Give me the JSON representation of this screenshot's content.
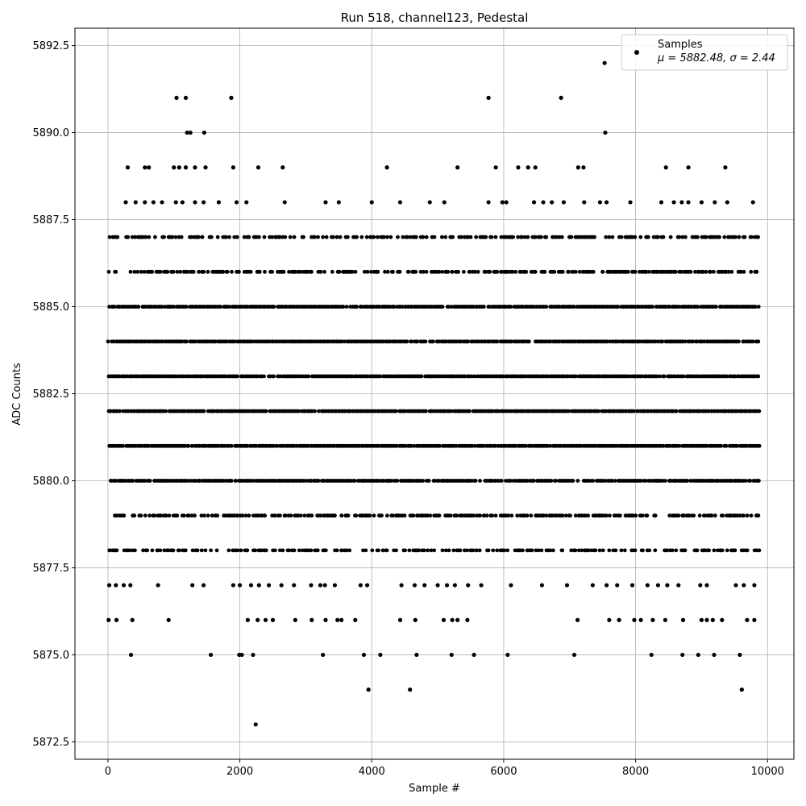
{
  "chart_data": {
    "type": "scatter",
    "title": "Run 518, channel123, Pedestal",
    "xlabel": "Sample #",
    "ylabel": "ADC Counts",
    "xlim": [
      -500,
      10400
    ],
    "ylim": [
      5872.0,
      5893.0
    ],
    "xticks": [
      0,
      2000,
      4000,
      6000,
      8000,
      10000
    ],
    "xtick_labels": [
      "0",
      "2000",
      "4000",
      "6000",
      "8000",
      "10000"
    ],
    "yticks": [
      5872.5,
      5875.0,
      5877.5,
      5880.0,
      5882.5,
      5885.0,
      5887.5,
      5890.0,
      5892.5
    ],
    "ytick_labels": [
      "5872.5",
      "5875.0",
      "5877.5",
      "5880.0",
      "5882.5",
      "5885.0",
      "5887.5",
      "5890.0",
      "5892.5"
    ],
    "grid": true,
    "legend": {
      "placement": "top-right",
      "entries": [
        {
          "label": "Samples",
          "sublabel": "μ = 5882.48, σ = 2.44"
        }
      ]
    },
    "marker_color": "#000000",
    "series": [
      {
        "name": "Samples",
        "levels": [
          {
            "y": 5885,
            "density": 0.9
          },
          {
            "y": 5884,
            "density": 0.9
          },
          {
            "y": 5883,
            "density": 0.95
          },
          {
            "y": 5882,
            "density": 0.95
          },
          {
            "y": 5881,
            "density": 0.95
          },
          {
            "y": 5880,
            "density": 0.85
          },
          {
            "y": 5886,
            "density": 0.6
          },
          {
            "y": 5879,
            "density": 0.6
          },
          {
            "y": 5887,
            "density": 0.5
          },
          {
            "y": 5878,
            "density": 0.45
          }
        ],
        "points": [
          [
            300,
            5889
          ],
          [
            560,
            5889
          ],
          [
            620,
            5889
          ],
          [
            1000,
            5889
          ],
          [
            1080,
            5889
          ],
          [
            1180,
            5889
          ],
          [
            1320,
            5889
          ],
          [
            1480,
            5889
          ],
          [
            1900,
            5889
          ],
          [
            2280,
            5889
          ],
          [
            2650,
            5889
          ],
          [
            4230,
            5889
          ],
          [
            5300,
            5889
          ],
          [
            5880,
            5889
          ],
          [
            6220,
            5889
          ],
          [
            6370,
            5889
          ],
          [
            6480,
            5889
          ],
          [
            7130,
            5889
          ],
          [
            7210,
            5889
          ],
          [
            8460,
            5889
          ],
          [
            8800,
            5889
          ],
          [
            9360,
            5889
          ],
          [
            270,
            5888
          ],
          [
            420,
            5888
          ],
          [
            560,
            5888
          ],
          [
            690,
            5888
          ],
          [
            820,
            5888
          ],
          [
            1030,
            5888
          ],
          [
            1130,
            5888
          ],
          [
            1320,
            5888
          ],
          [
            1450,
            5888
          ],
          [
            1680,
            5888
          ],
          [
            1950,
            5888
          ],
          [
            2100,
            5888
          ],
          [
            2680,
            5888
          ],
          [
            3300,
            5888
          ],
          [
            3500,
            5888
          ],
          [
            4000,
            5888
          ],
          [
            4430,
            5888
          ],
          [
            4880,
            5888
          ],
          [
            5100,
            5888
          ],
          [
            5770,
            5888
          ],
          [
            5980,
            5888
          ],
          [
            6040,
            5888
          ],
          [
            6460,
            5888
          ],
          [
            6600,
            5888
          ],
          [
            6730,
            5888
          ],
          [
            6910,
            5888
          ],
          [
            7220,
            5888
          ],
          [
            7460,
            5888
          ],
          [
            7560,
            5888
          ],
          [
            7920,
            5888
          ],
          [
            8390,
            5888
          ],
          [
            8580,
            5888
          ],
          [
            8700,
            5888
          ],
          [
            8800,
            5888
          ],
          [
            9000,
            5888
          ],
          [
            9200,
            5888
          ],
          [
            9390,
            5888
          ],
          [
            9780,
            5888
          ],
          [
            1040,
            5891
          ],
          [
            1180,
            5891
          ],
          [
            1870,
            5891
          ],
          [
            5770,
            5891
          ],
          [
            6870,
            5891
          ],
          [
            1200,
            5890
          ],
          [
            1250,
            5890
          ],
          [
            1460,
            5890
          ],
          [
            7540,
            5890
          ],
          [
            7530,
            5892
          ],
          [
            20,
            5877
          ],
          [
            120,
            5877
          ],
          [
            240,
            5877
          ],
          [
            340,
            5877
          ],
          [
            760,
            5877
          ],
          [
            1280,
            5877
          ],
          [
            1450,
            5877
          ],
          [
            1900,
            5877
          ],
          [
            2000,
            5877
          ],
          [
            2170,
            5877
          ],
          [
            2290,
            5877
          ],
          [
            2440,
            5877
          ],
          [
            2630,
            5877
          ],
          [
            2820,
            5877
          ],
          [
            3080,
            5877
          ],
          [
            3220,
            5877
          ],
          [
            3290,
            5877
          ],
          [
            3440,
            5877
          ],
          [
            3830,
            5877
          ],
          [
            3930,
            5877
          ],
          [
            4450,
            5877
          ],
          [
            4650,
            5877
          ],
          [
            4800,
            5877
          ],
          [
            5000,
            5877
          ],
          [
            5140,
            5877
          ],
          [
            5260,
            5877
          ],
          [
            5460,
            5877
          ],
          [
            5660,
            5877
          ],
          [
            6110,
            5877
          ],
          [
            6580,
            5877
          ],
          [
            6960,
            5877
          ],
          [
            7350,
            5877
          ],
          [
            7560,
            5877
          ],
          [
            7720,
            5877
          ],
          [
            7950,
            5877
          ],
          [
            8180,
            5877
          ],
          [
            8340,
            5877
          ],
          [
            8480,
            5877
          ],
          [
            8650,
            5877
          ],
          [
            8980,
            5877
          ],
          [
            9080,
            5877
          ],
          [
            9520,
            5877
          ],
          [
            9640,
            5877
          ],
          [
            9800,
            5877
          ],
          [
            10,
            5876
          ],
          [
            130,
            5876
          ],
          [
            370,
            5876
          ],
          [
            920,
            5876
          ],
          [
            2120,
            5876
          ],
          [
            2270,
            5876
          ],
          [
            2390,
            5876
          ],
          [
            2500,
            5876
          ],
          [
            2840,
            5876
          ],
          [
            3090,
            5876
          ],
          [
            3300,
            5876
          ],
          [
            3480,
            5876
          ],
          [
            3540,
            5876
          ],
          [
            3750,
            5876
          ],
          [
            4430,
            5876
          ],
          [
            4660,
            5876
          ],
          [
            5090,
            5876
          ],
          [
            5220,
            5876
          ],
          [
            5300,
            5876
          ],
          [
            5450,
            5876
          ],
          [
            7120,
            5876
          ],
          [
            7600,
            5876
          ],
          [
            7750,
            5876
          ],
          [
            7980,
            5876
          ],
          [
            8080,
            5876
          ],
          [
            8260,
            5876
          ],
          [
            8450,
            5876
          ],
          [
            8720,
            5876
          ],
          [
            9000,
            5876
          ],
          [
            9080,
            5876
          ],
          [
            9170,
            5876
          ],
          [
            9310,
            5876
          ],
          [
            9690,
            5876
          ],
          [
            9800,
            5876
          ],
          [
            350,
            5875
          ],
          [
            1560,
            5875
          ],
          [
            1990,
            5875
          ],
          [
            2030,
            5875
          ],
          [
            2200,
            5875
          ],
          [
            3260,
            5875
          ],
          [
            3880,
            5875
          ],
          [
            4130,
            5875
          ],
          [
            4680,
            5875
          ],
          [
            5210,
            5875
          ],
          [
            5550,
            5875
          ],
          [
            6060,
            5875
          ],
          [
            7070,
            5875
          ],
          [
            8240,
            5875
          ],
          [
            8710,
            5875
          ],
          [
            8950,
            5875
          ],
          [
            9190,
            5875
          ],
          [
            9580,
            5875
          ],
          [
            3950,
            5874
          ],
          [
            4580,
            5874
          ],
          [
            9610,
            5874
          ],
          [
            2240,
            5873
          ]
        ]
      }
    ]
  }
}
